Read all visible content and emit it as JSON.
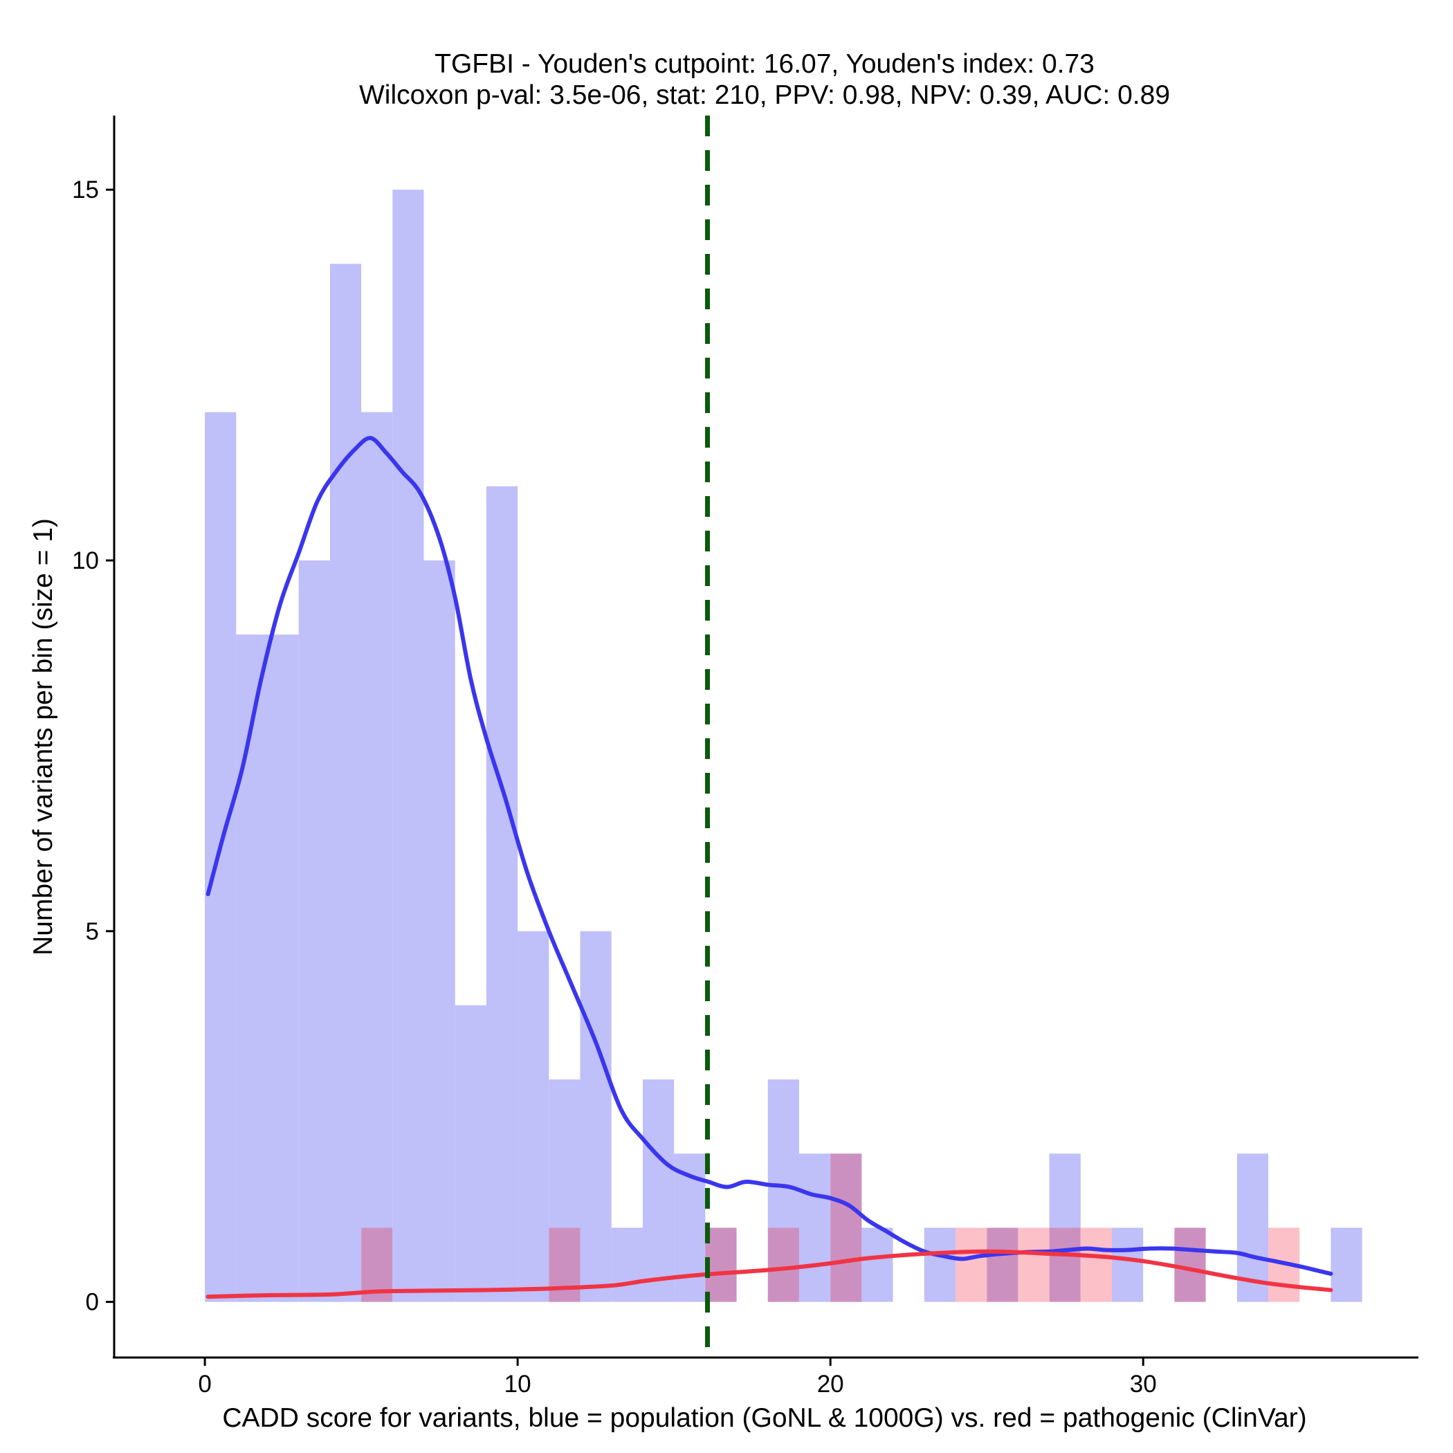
{
  "chart_data": {
    "type": "histogram",
    "title_lines": [
      "TGFBI - Youden's cutpoint: 16.07, Youden's index: 0.73",
      "Wilcoxon p-val: 3.5e-06, stat: 210, PPV: 0.98, NPV: 0.39, AUC: 0.89"
    ],
    "xlabel": "CADD score for variants, blue = population (GoNL & 1000G) vs. red = pathogenic (ClinVar)",
    "ylabel": "Number of variants per bin (size = 1)",
    "xlim": [
      -2.9,
      38.8
    ],
    "ylim": [
      -0.75,
      16.0
    ],
    "x_ticks": [
      0,
      10,
      20,
      30
    ],
    "y_ticks": [
      0,
      5,
      10,
      15
    ],
    "bin_width": 1,
    "cutpoint": 16.07,
    "colors": {
      "population_bar": "#bfbff9",
      "pathogenic_bar": "#fcc0c8",
      "overlap_bar": "#cc90c0",
      "population_density": "#3a36ee",
      "pathogenic_density": "#f03444",
      "cutpoint_line": "#0a5a0a"
    },
    "series": [
      {
        "name": "population (GoNL & 1000G)",
        "bins": [
          {
            "x0": 0,
            "count": 12
          },
          {
            "x0": 1,
            "count": 9
          },
          {
            "x0": 2,
            "count": 9
          },
          {
            "x0": 3,
            "count": 10
          },
          {
            "x0": 4,
            "count": 14
          },
          {
            "x0": 5,
            "count": 12
          },
          {
            "x0": 6,
            "count": 15
          },
          {
            "x0": 7,
            "count": 10
          },
          {
            "x0": 8,
            "count": 4
          },
          {
            "x0": 9,
            "count": 11
          },
          {
            "x0": 10,
            "count": 5
          },
          {
            "x0": 11,
            "count": 3
          },
          {
            "x0": 12,
            "count": 5
          },
          {
            "x0": 13,
            "count": 1
          },
          {
            "x0": 14,
            "count": 3
          },
          {
            "x0": 15,
            "count": 2
          },
          {
            "x0": 16,
            "count": 1
          },
          {
            "x0": 17,
            "count": 0
          },
          {
            "x0": 18,
            "count": 3
          },
          {
            "x0": 19,
            "count": 2
          },
          {
            "x0": 20,
            "count": 2
          },
          {
            "x0": 21,
            "count": 1
          },
          {
            "x0": 22,
            "count": 0
          },
          {
            "x0": 23,
            "count": 1
          },
          {
            "x0": 24,
            "count": 0
          },
          {
            "x0": 25,
            "count": 1
          },
          {
            "x0": 26,
            "count": 0
          },
          {
            "x0": 27,
            "count": 2
          },
          {
            "x0": 28,
            "count": 0
          },
          {
            "x0": 29,
            "count": 1
          },
          {
            "x0": 30,
            "count": 0
          },
          {
            "x0": 31,
            "count": 1
          },
          {
            "x0": 32,
            "count": 0
          },
          {
            "x0": 33,
            "count": 2
          },
          {
            "x0": 34,
            "count": 0
          },
          {
            "x0": 35,
            "count": 0
          },
          {
            "x0": 36,
            "count": 1
          }
        ],
        "density": [
          [
            0.1,
            5.5
          ],
          [
            0.6,
            6.3
          ],
          [
            1.2,
            7.2
          ],
          [
            1.8,
            8.4
          ],
          [
            2.4,
            9.4
          ],
          [
            3.0,
            10.1
          ],
          [
            3.6,
            10.8
          ],
          [
            4.2,
            11.2
          ],
          [
            4.8,
            11.5
          ],
          [
            5.3,
            11.65
          ],
          [
            5.8,
            11.45
          ],
          [
            6.3,
            11.2
          ],
          [
            6.9,
            10.9
          ],
          [
            7.5,
            10.3
          ],
          [
            8.0,
            9.5
          ],
          [
            8.5,
            8.4
          ],
          [
            9.0,
            7.6
          ],
          [
            9.6,
            6.8
          ],
          [
            10.3,
            5.8
          ],
          [
            11.0,
            5.0
          ],
          [
            11.7,
            4.3
          ],
          [
            12.5,
            3.5
          ],
          [
            13.3,
            2.6
          ],
          [
            14.0,
            2.2
          ],
          [
            14.8,
            1.85
          ],
          [
            15.5,
            1.7
          ],
          [
            16.1,
            1.62
          ],
          [
            16.7,
            1.55
          ],
          [
            17.3,
            1.62
          ],
          [
            18.0,
            1.58
          ],
          [
            18.7,
            1.55
          ],
          [
            19.4,
            1.45
          ],
          [
            20.0,
            1.4
          ],
          [
            20.6,
            1.3
          ],
          [
            21.2,
            1.1
          ],
          [
            21.8,
            0.95
          ],
          [
            22.4,
            0.8
          ],
          [
            23.0,
            0.68
          ],
          [
            23.6,
            0.62
          ],
          [
            24.2,
            0.58
          ],
          [
            24.8,
            0.62
          ],
          [
            25.5,
            0.65
          ],
          [
            26.2,
            0.67
          ],
          [
            27.0,
            0.68
          ],
          [
            27.6,
            0.7
          ],
          [
            28.2,
            0.72
          ],
          [
            28.8,
            0.7
          ],
          [
            29.5,
            0.7
          ],
          [
            30.2,
            0.72
          ],
          [
            30.9,
            0.72
          ],
          [
            31.6,
            0.7
          ],
          [
            32.3,
            0.68
          ],
          [
            33.0,
            0.66
          ],
          [
            33.6,
            0.6
          ],
          [
            34.2,
            0.55
          ],
          [
            35.0,
            0.48
          ],
          [
            35.6,
            0.42
          ],
          [
            36.0,
            0.38
          ]
        ]
      },
      {
        "name": "pathogenic (ClinVar)",
        "bins": [
          {
            "x0": 5,
            "count": 1
          },
          {
            "x0": 11,
            "count": 1
          },
          {
            "x0": 16,
            "count": 1
          },
          {
            "x0": 18,
            "count": 1
          },
          {
            "x0": 20,
            "count": 2
          },
          {
            "x0": 24,
            "count": 1
          },
          {
            "x0": 25,
            "count": 1
          },
          {
            "x0": 26,
            "count": 1
          },
          {
            "x0": 27,
            "count": 1
          },
          {
            "x0": 28,
            "count": 1
          },
          {
            "x0": 31,
            "count": 1
          },
          {
            "x0": 34,
            "count": 1
          }
        ],
        "density": [
          [
            0.1,
            0.07
          ],
          [
            2.0,
            0.09
          ],
          [
            4.0,
            0.1
          ],
          [
            5.5,
            0.14
          ],
          [
            7.0,
            0.15
          ],
          [
            9.0,
            0.16
          ],
          [
            11.0,
            0.18
          ],
          [
            13.0,
            0.22
          ],
          [
            14.0,
            0.28
          ],
          [
            15.0,
            0.33
          ],
          [
            16.0,
            0.37
          ],
          [
            17.0,
            0.4
          ],
          [
            18.0,
            0.43
          ],
          [
            19.0,
            0.47
          ],
          [
            20.0,
            0.52
          ],
          [
            21.0,
            0.58
          ],
          [
            22.0,
            0.62
          ],
          [
            23.0,
            0.65
          ],
          [
            24.0,
            0.67
          ],
          [
            25.0,
            0.68
          ],
          [
            26.0,
            0.67
          ],
          [
            27.0,
            0.65
          ],
          [
            28.0,
            0.63
          ],
          [
            29.0,
            0.6
          ],
          [
            30.0,
            0.55
          ],
          [
            31.0,
            0.48
          ],
          [
            32.0,
            0.4
          ],
          [
            33.0,
            0.32
          ],
          [
            34.0,
            0.25
          ],
          [
            35.0,
            0.2
          ],
          [
            36.0,
            0.16
          ]
        ]
      }
    ]
  }
}
